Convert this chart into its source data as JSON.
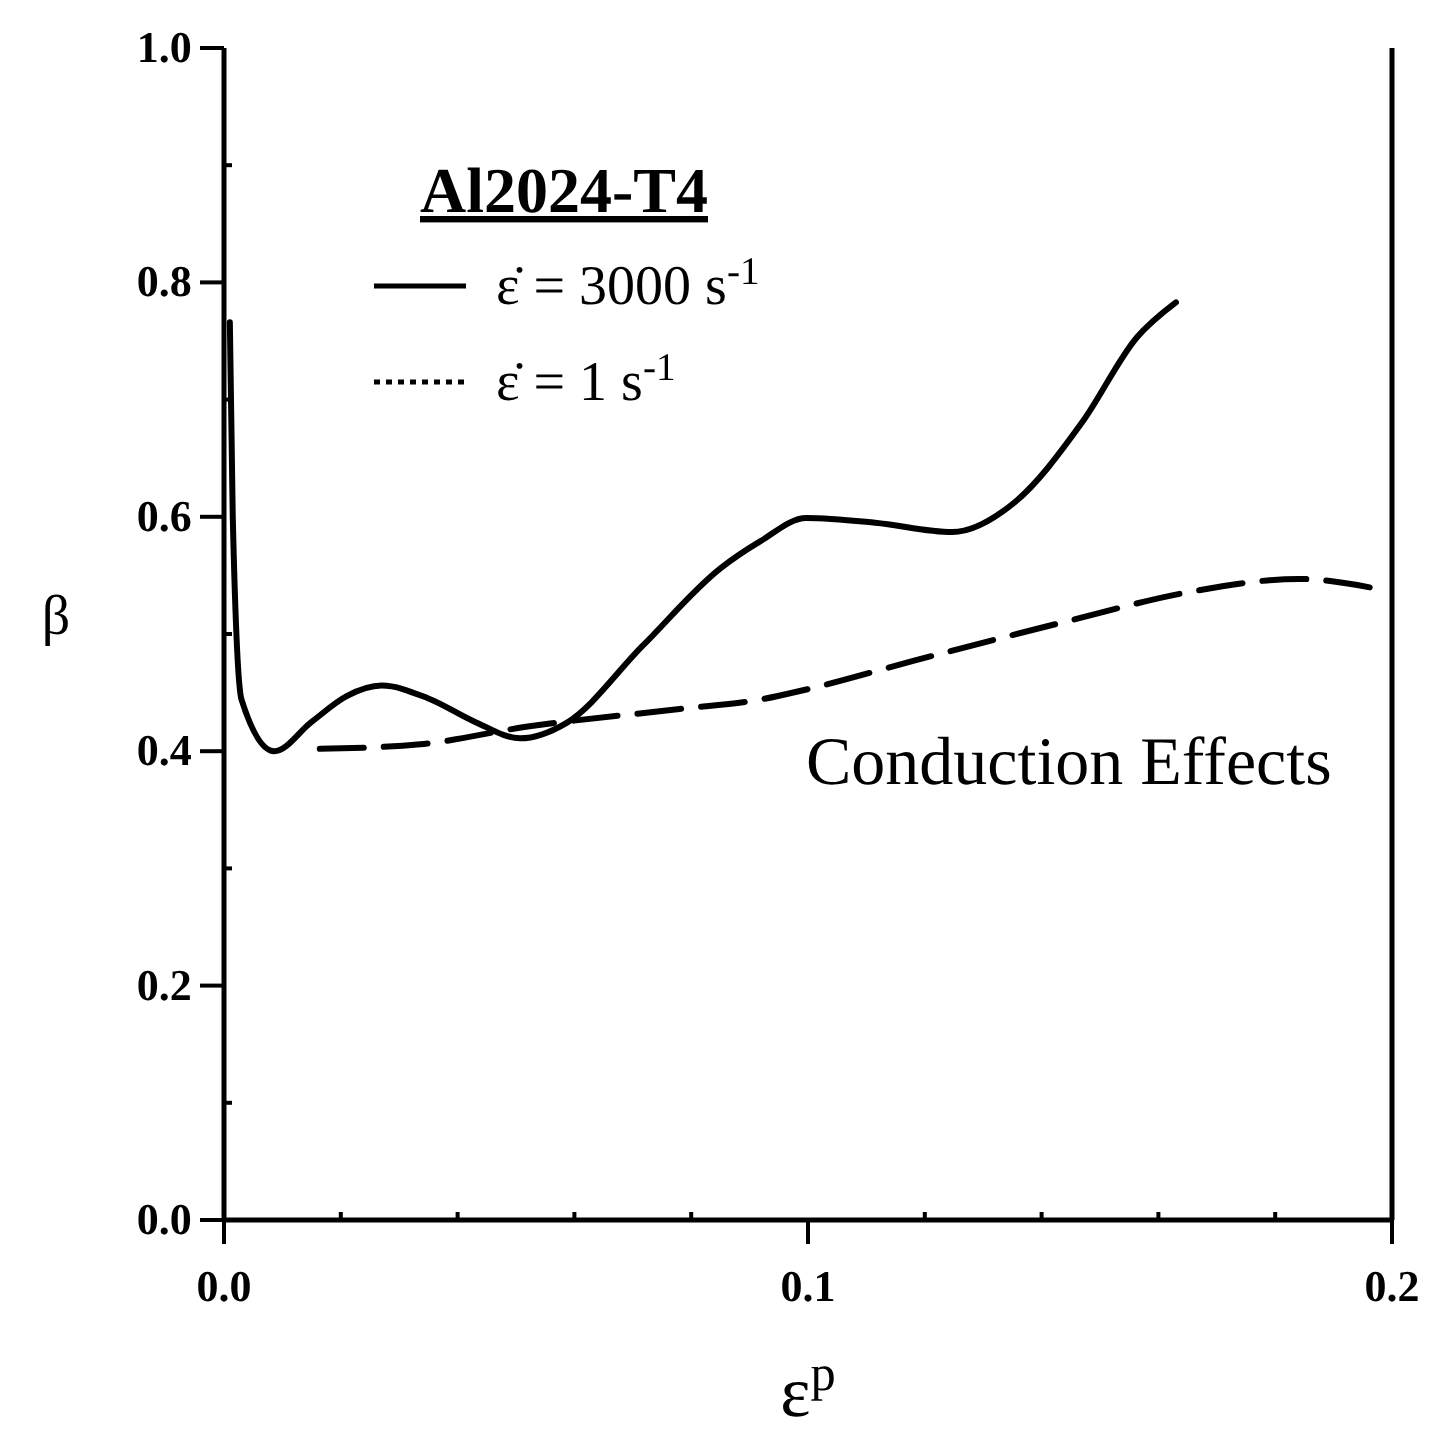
{
  "chart_data": {
    "type": "line",
    "xlabel": "ε$^{p}$",
    "ylabel": "β",
    "legend_title": "Al2024-T4",
    "legend": "top left",
    "grid": false,
    "xlim": [
      0,
      0.2
    ],
    "ylim": [
      0,
      1
    ],
    "xticks": [
      {
        "value": 0,
        "label": "0.0"
      },
      {
        "value": 0.02,
        "label": null
      },
      {
        "value": 0.04,
        "label": null
      },
      {
        "value": 0.06,
        "label": null
      },
      {
        "value": 0.08,
        "label": null
      },
      0.1,
      {
        "value": 0.12,
        "label": null
      },
      {
        "value": 0.14,
        "label": null
      },
      {
        "value": 0.16,
        "label": null
      },
      {
        "value": 0.18,
        "label": null
      },
      0.2
    ],
    "yticks": [
      {
        "value": 0,
        "label": "0.0"
      },
      {
        "value": 0.1,
        "label": null
      },
      0.2,
      {
        "value": 0.3,
        "label": null
      },
      0.4,
      {
        "value": 0.5,
        "label": null
      },
      0.6,
      {
        "value": 0.7,
        "label": null
      },
      0.8,
      {
        "value": 0.9,
        "label": null
      },
      {
        "value": 1,
        "label": "1.0"
      }
    ],
    "annotations": [
      "Conduction Effects"
    ],
    "series": [
      {
        "name": "ε̇ = 3000 s$^{-1}$",
        "color": "#000000",
        "line_style": "solid",
        "x": [
          0.001,
          0.0015,
          0.003,
          0.0086,
          0.015,
          0.021,
          0.027,
          0.035,
          0.043,
          0.0507,
          0.0586,
          0.0717,
          0.085,
          0.0918,
          0.0997,
          0.1115,
          0.1247,
          0.1353,
          0.147,
          0.1563,
          0.163
        ],
        "values": [
          0.766,
          0.6,
          0.444,
          0.4,
          0.425,
          0.447,
          0.456,
          0.445,
          0.425,
          0.411,
          0.424,
          0.49,
          0.556,
          0.579,
          0.599,
          0.595,
          0.587,
          0.612,
          0.681,
          0.753,
          0.783
        ]
      },
      {
        "name": "ε̇ = 1 s$^{-1}$",
        "color": "#000000",
        "line_style": "dashed",
        "x": [
          0.0164,
          0.0336,
          0.052,
          0.078,
          0.0918,
          0.1,
          0.118,
          0.1445,
          0.1655,
          0.184,
          0.199
        ],
        "values": [
          0.402,
          0.406,
          0.421,
          0.436,
          0.444,
          0.453,
          0.477,
          0.511,
          0.536,
          0.547,
          0.537
        ]
      }
    ]
  }
}
